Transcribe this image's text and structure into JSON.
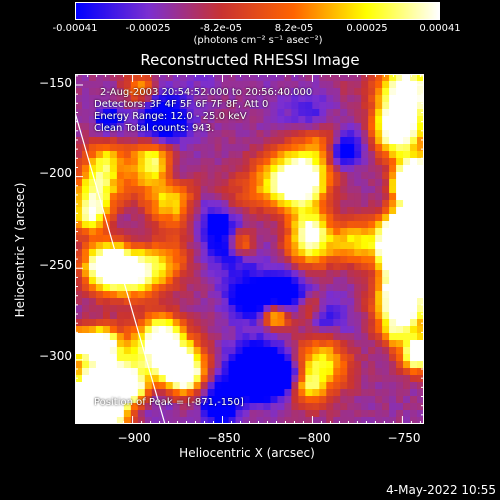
{
  "colorbar": {
    "tick_labels": [
      "-0.00041",
      "-0.00025",
      "-8.2e-05",
      "8.2e-05",
      "0.00025",
      "0.00041"
    ],
    "units": "(photons cm⁻² s⁻¹ asec⁻²)"
  },
  "title": "Reconstructed RHESSI Image",
  "annotations": {
    "time_range": "2-Aug-2003 20:54:52.000 to 20:56:40.000",
    "detectors": "Detectors: 3F 4F 5F 6F 7F 8F, Att 0",
    "energy": "Energy Range: 12.0 - 25.0 keV",
    "clean": "Clean    Total counts: 943.",
    "peak": "Position of Peak = [-871,-150]"
  },
  "axes": {
    "xlabel": "Heliocentric X (arcsec)",
    "ylabel": "Heliocentric Y (arcsec)",
    "x_ticks": [
      "−900",
      "−850",
      "−800",
      "−750"
    ],
    "y_ticks": [
      "−150",
      "−200",
      "−250",
      "−300"
    ]
  },
  "footer": {
    "date_stamp": "4-May-2022 10:55"
  },
  "chart_data": {
    "type": "heatmap",
    "title": "Reconstructed RHESSI Image",
    "xlabel": "Heliocentric X (arcsec)",
    "ylabel": "Heliocentric Y (arcsec)",
    "xlim": [
      -932,
      -738
    ],
    "ylim": [
      -335,
      -144
    ],
    "x_ticks": [
      -900,
      -850,
      -800,
      -750
    ],
    "y_ticks": [
      -150,
      -200,
      -250,
      -300
    ],
    "color_range": [
      -0.00041,
      0.00041
    ],
    "colorbar_ticks": [
      -0.00041,
      -0.00025,
      -8.2e-05,
      8.2e-05,
      0.00025,
      0.00041
    ],
    "colormap": [
      "#0000ff",
      "#7b2fd0",
      "#c83232",
      "#ff6400",
      "#ffff00",
      "#ffffff"
    ],
    "limb_line": {
      "x": [
        -932,
        -882
      ],
      "y": [
        -165,
        -335
      ]
    }
  }
}
